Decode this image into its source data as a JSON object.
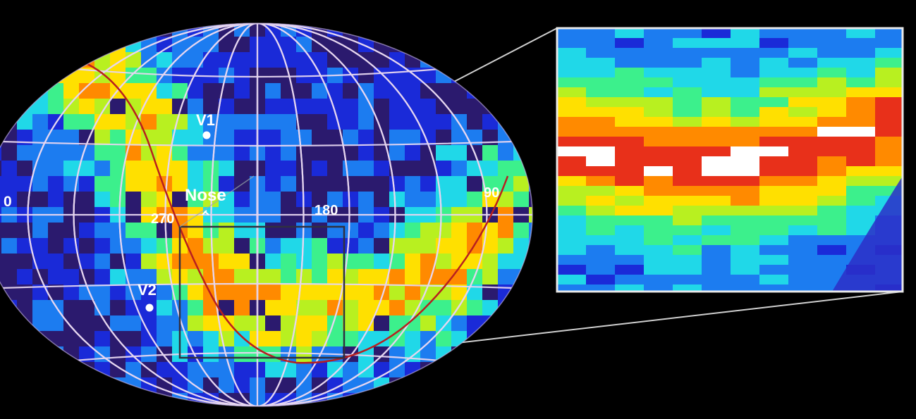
{
  "labels": {
    "v1": "V1",
    "v2": "V2",
    "nose": "Nose",
    "lon_0": "0",
    "lon_270": "270",
    "lon_180": "180",
    "lon_90": "90"
  },
  "colors": {
    "background": "#000000",
    "sky_base": "#2a2fd0",
    "ribbon": "#b81f1f",
    "grid": "#e6d6f0",
    "scale": [
      "#2b1a6e",
      "#1a2ad8",
      "#1c7cf0",
      "#20d8e8",
      "#3cf08c",
      "#b8f020",
      "#ffe000",
      "#ff8a00",
      "#e8301a",
      "#ffffff"
    ]
  },
  "legend": {
    "scale_description": "",
    "units": ""
  }
}
